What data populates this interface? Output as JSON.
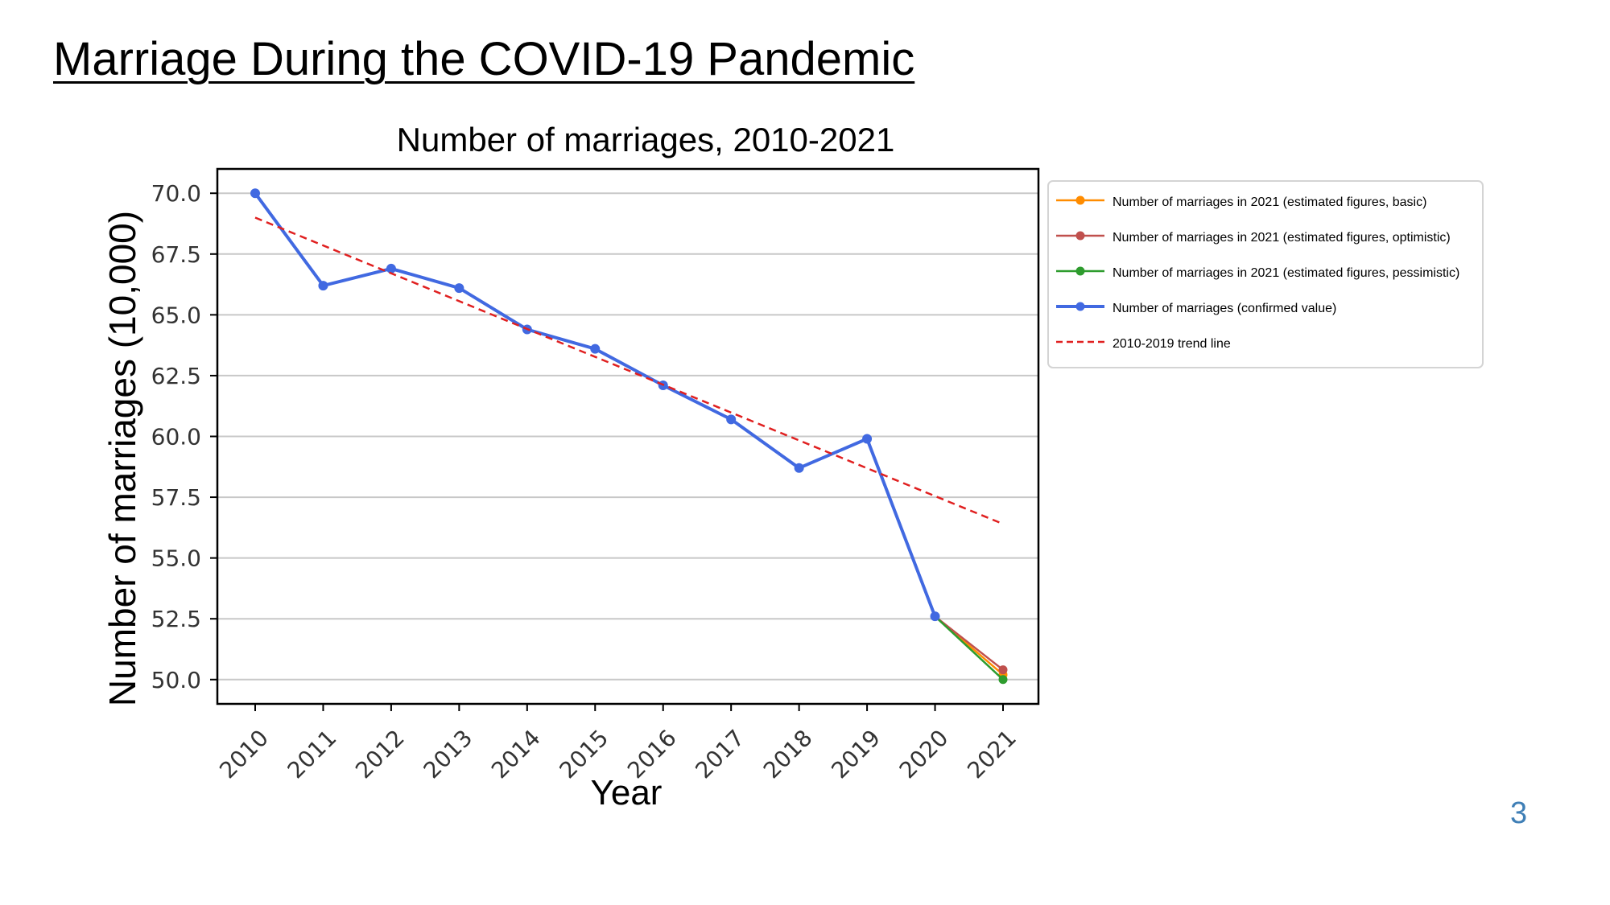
{
  "slide": {
    "title": "Marriage During the COVID-19 Pandemic",
    "page_number": "3"
  },
  "colors": {
    "confirmed": "#4169e1",
    "trend": "#e02020",
    "basic": "#ff8c00",
    "optimistic": "#c0504d",
    "pessimistic": "#2e9c2e"
  },
  "chart_data": {
    "type": "line",
    "title": "Number of marriages, 2010-2021",
    "xlabel": "Year",
    "ylabel": "Number of marriages (10,000)",
    "ylim": [
      49,
      71
    ],
    "yticks": [
      50.0,
      52.5,
      55.0,
      57.5,
      60.0,
      62.5,
      65.0,
      67.5,
      70.0
    ],
    "ytick_labels": [
      "50.0",
      "52.5",
      "55.0",
      "57.5",
      "60.0",
      "62.5",
      "65.0",
      "67.5",
      "70.0"
    ],
    "categories": [
      "2010",
      "2011",
      "2012",
      "2013",
      "2014",
      "2015",
      "2016",
      "2017",
      "2018",
      "2019",
      "2020",
      "2021"
    ],
    "grid": "horizontal",
    "legend_position": "outside-right",
    "series": [
      {
        "key": "basic",
        "name": "Number of marriages in 2021 (estimated figures, basic)",
        "style": "line-marker",
        "x": [
          "2020",
          "2021"
        ],
        "values": [
          52.6,
          50.2
        ]
      },
      {
        "key": "optimistic",
        "name": "Number of marriages in 2021 (estimated figures, optimistic)",
        "style": "line-marker",
        "x": [
          "2020",
          "2021"
        ],
        "values": [
          52.6,
          50.4
        ]
      },
      {
        "key": "pessimistic",
        "name": "Number of marriages in 2021 (estimated figures, pessimistic)",
        "style": "line-marker",
        "x": [
          "2020",
          "2021"
        ],
        "values": [
          52.6,
          50.0
        ]
      },
      {
        "key": "confirmed",
        "name": "Number of marriages (confirmed value)",
        "style": "line-marker-thick",
        "x": [
          "2010",
          "2011",
          "2012",
          "2013",
          "2014",
          "2015",
          "2016",
          "2017",
          "2018",
          "2019",
          "2020"
        ],
        "values": [
          70.0,
          66.2,
          66.9,
          66.1,
          64.4,
          63.6,
          62.1,
          60.7,
          58.7,
          59.9,
          52.6
        ]
      },
      {
        "key": "trend",
        "name": "2010-2019 trend line",
        "style": "dashed",
        "x": [
          "2010",
          "2021"
        ],
        "values": [
          69.0,
          56.4
        ]
      }
    ]
  }
}
